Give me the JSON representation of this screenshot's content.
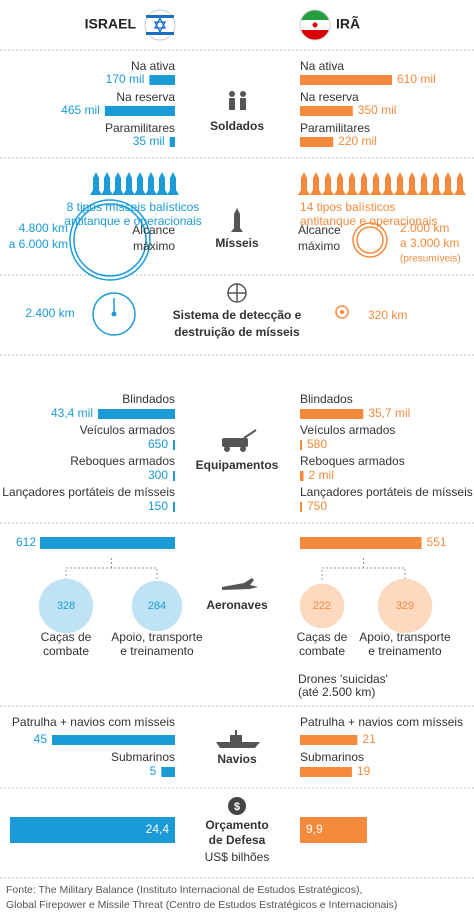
{
  "header": {
    "israel": "ISRAEL",
    "iran": "IRÃ"
  },
  "soldiers": {
    "title": "Soldados",
    "rows": [
      {
        "label": "Na ativa",
        "israel": 170000,
        "israel_label": "170 mil",
        "iran": 610000,
        "iran_label": "610 mil"
      },
      {
        "label": "Na reserva",
        "israel": 465000,
        "israel_label": "465 mil",
        "iran": 350000,
        "iran_label": "350 mil"
      },
      {
        "label": "Paramilitares",
        "israel": 35000,
        "israel_label": "35 mil",
        "iran": 220000,
        "iran_label": "220 mil"
      }
    ]
  },
  "missiles": {
    "title": "Mísseis",
    "israel_types": [
      "8 tipos mísseis balísticos",
      "antitanque e operacionais"
    ],
    "iran_types": [
      "14 tipos balísticos",
      "antitanque e operacionais"
    ],
    "range_label": [
      "Alcance",
      "máximo"
    ],
    "israel_range": [
      "4.800 km",
      "a 6.000 km"
    ],
    "iran_range": [
      "2.000 km",
      "a 3.000 km",
      "(presumíveis)"
    ]
  },
  "detection": {
    "title": [
      "Sistema de detecção e",
      "destruição de mísseis"
    ],
    "israel": "2.400 km",
    "iran": "320 km"
  },
  "equipment": {
    "title": "Equipamentos",
    "rows": [
      {
        "label": "Blindados",
        "israel": 43400,
        "israel_label": "43,4 mil",
        "iran": 35700,
        "iran_label": "35,7 mil"
      },
      {
        "label": "Veículos armados",
        "israel": 650,
        "iran": 580
      },
      {
        "label": "Reboques armados",
        "israel": 300,
        "iran": 2000,
        "iran_label": "2 mil"
      },
      {
        "label": "Lançadores portáteis de mísseis",
        "israel": 150,
        "iran": 750
      }
    ]
  },
  "aircraft": {
    "title": "Aeronaves",
    "israel_total": 612,
    "iran_total": 551,
    "israel_breakdown": [
      {
        "value": 328,
        "label": [
          "Caças de",
          "combate"
        ]
      },
      {
        "value": 284,
        "label": [
          "Apoio, transporte",
          "e treinamento"
        ]
      }
    ],
    "iran_breakdown": [
      {
        "value": 222,
        "label": [
          "Caças de",
          "combate"
        ]
      },
      {
        "value": 329,
        "label": [
          "Apoio, transporte",
          "e treinamento"
        ]
      }
    ],
    "drones": [
      "Drones 'suicidas'",
      "(até 2.500 km)"
    ]
  },
  "ships": {
    "title": "Navios",
    "rows": [
      {
        "label": "Patrulha + navios com mísseis",
        "israel": 45,
        "iran": 21
      },
      {
        "label": "Submarinos",
        "israel": 5,
        "iran": 19
      }
    ]
  },
  "budget": {
    "title": [
      "Orçamento",
      "de Defesa"
    ],
    "unit": "US$ bilhões",
    "israel": 24.4,
    "israel_label": "24,4",
    "iran": 9.9,
    "iran_label": "9,9"
  },
  "source": [
    "Fonte: The Military Balance (Instituto Internacional de Estudos Estratégicos),",
    "Global Firepower e Missile Threat (Centro de Estudos Estratégicos e Internacionais)"
  ]
}
